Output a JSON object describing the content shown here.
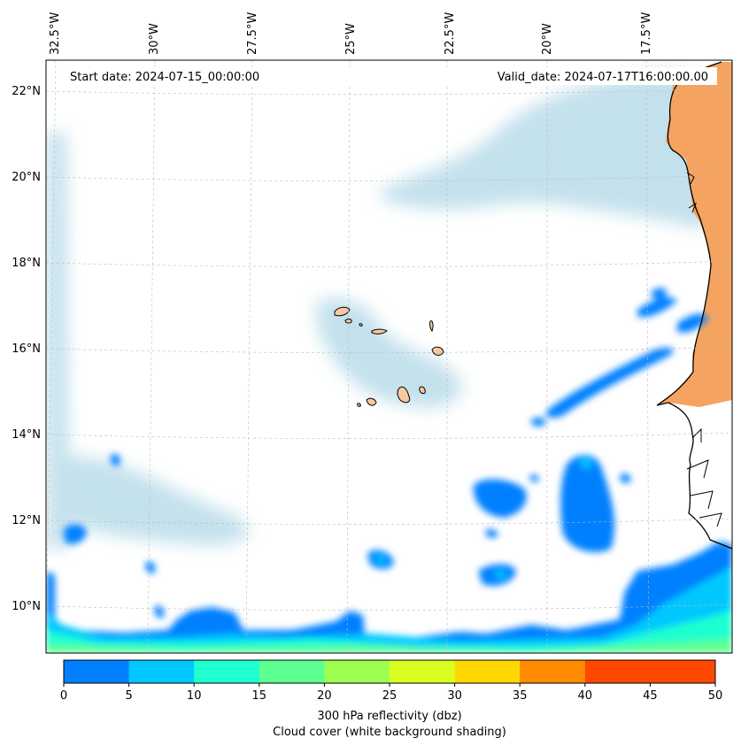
{
  "map": {
    "start_label": "Start date: 2024-07-15_00:00:00",
    "valid_label": "Valid_date: 2024-07-17T16:00:00.00",
    "lon_ticks": [
      {
        "label": "32.5°W",
        "lon": -32.5
      },
      {
        "label": "30°W",
        "lon": -30
      },
      {
        "label": "27.5°W",
        "lon": -27.5
      },
      {
        "label": "25°W",
        "lon": -25
      },
      {
        "label": "22.5°W",
        "lon": -22.5
      },
      {
        "label": "20°W",
        "lon": -20
      },
      {
        "label": "17.5°W",
        "lon": -17.5
      }
    ],
    "lat_ticks": [
      {
        "label": "22°N",
        "lat": 22
      },
      {
        "label": "20°N",
        "lat": 20
      },
      {
        "label": "18°N",
        "lat": 18
      },
      {
        "label": "16°N",
        "lat": 16
      },
      {
        "label": "14°N",
        "lat": 14
      },
      {
        "label": "12°N",
        "lat": 12
      },
      {
        "label": "10°N",
        "lat": 10
      }
    ],
    "land_color": "#f4a460",
    "cloud_color": "#b0d8e6",
    "coast_color": "#000000"
  },
  "colorbar": {
    "ticks": [
      "0",
      "5",
      "10",
      "15",
      "20",
      "25",
      "30",
      "35",
      "40",
      "45",
      "50"
    ],
    "colors": [
      "#0080ff",
      "#00c8ff",
      "#1fffd0",
      "#5dff90",
      "#9cff50",
      "#d8ff20",
      "#ffd700",
      "#ff8c00",
      "#ff4800",
      "#ff4800"
    ],
    "label_line1": "300 hPa reflectivity (dbz)",
    "label_line2": "Cloud cover (white background shading)"
  }
}
